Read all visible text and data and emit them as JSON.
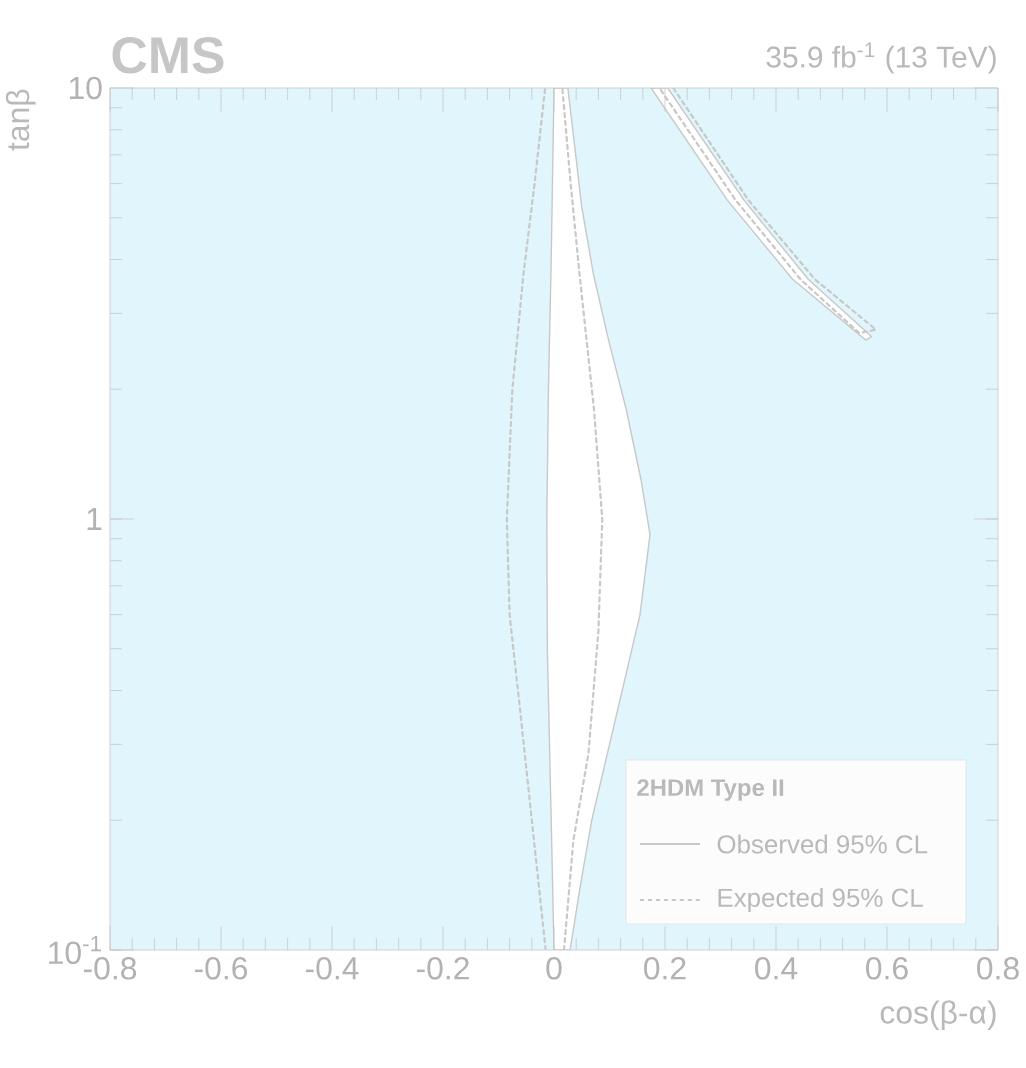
{
  "chart_data": {
    "type": "line",
    "title": "CMS",
    "subtitle": "35.9 fb$^{-1}$ (13 TeV)",
    "xlabel": "cos(β-α)",
    "ylabel": "tanβ",
    "legend_title": "2HDM Type II",
    "legend": "bottom right",
    "log": "y",
    "xlim": [
      -0.8,
      0.8
    ],
    "xticks": [
      -0.8,
      -0.6,
      -0.4,
      -0.2,
      0,
      0.2,
      0.4,
      0.6,
      0.8
    ],
    "ylim": [
      0.1,
      10
    ],
    "yticks": [
      {
        "value": 0.1,
        "label": "10$^{-1}$"
      },
      1,
      10
    ],
    "bands": [
      {
        "axis": "x",
        "from": -0.8,
        "to": 0.8,
        "color": "#e0f6fc"
      }
    ],
    "series": [
      {
        "type": "area",
        "name": "Observed 95% CL",
        "color": "#c8c8c8",
        "line_style": "solid",
        "x": [
          0.0,
          -0.005,
          -0.012,
          -0.013,
          -0.01,
          -0.005,
          0.0,
          0.025,
          0.05,
          0.071,
          0.099,
          0.13,
          0.157,
          0.173,
          0.155,
          0.11,
          0.068,
          0.047,
          0.029
        ],
        "values": [
          0.1,
          0.2,
          0.5,
          1,
          2,
          4,
          10,
          10,
          5.3,
          3.7,
          2.58,
          1.8,
          1.23,
          0.92,
          0.6,
          0.34,
          0.2,
          0.14,
          0.1
        ]
      },
      {
        "type": "area",
        "color": "#c8c8c8",
        "line_style": "solid",
        "x": [
          0.175,
          0.312,
          0.43,
          0.562,
          0.572,
          0.458,
          0.342,
          0.205
        ],
        "values": [
          10,
          5.5,
          3.6,
          2.6,
          2.65,
          3.6,
          5.5,
          10
        ]
      },
      {
        "name": "Expected 95% CL",
        "color": "#c8c8c8",
        "line_style": "dotted",
        "x": [
          -0.015,
          -0.04,
          -0.06,
          -0.08,
          -0.085,
          -0.075,
          -0.055,
          -0.035,
          -0.016
        ],
        "values": [
          0.1,
          0.2,
          0.35,
          0.6,
          1,
          2,
          3.7,
          6,
          10
        ]
      },
      {
        "color": "#c8c8c8",
        "line_style": "dotted",
        "x": [
          0.018,
          0.035,
          0.062,
          0.08,
          0.087,
          0.072,
          0.046,
          0.03,
          0.015
        ],
        "values": [
          0.1,
          0.18,
          0.285,
          0.55,
          1,
          1.8,
          3.7,
          6,
          10
        ]
      },
      {
        "color": "#c8c8c8",
        "line_style": "dotted",
        "x": [
          0.215,
          0.35,
          0.47,
          0.58,
          0.55,
          0.444,
          0.327,
          0.19
        ],
        "values": [
          10,
          5.5,
          3.6,
          2.75,
          2.7,
          3.6,
          5.5,
          10
        ]
      }
    ]
  }
}
